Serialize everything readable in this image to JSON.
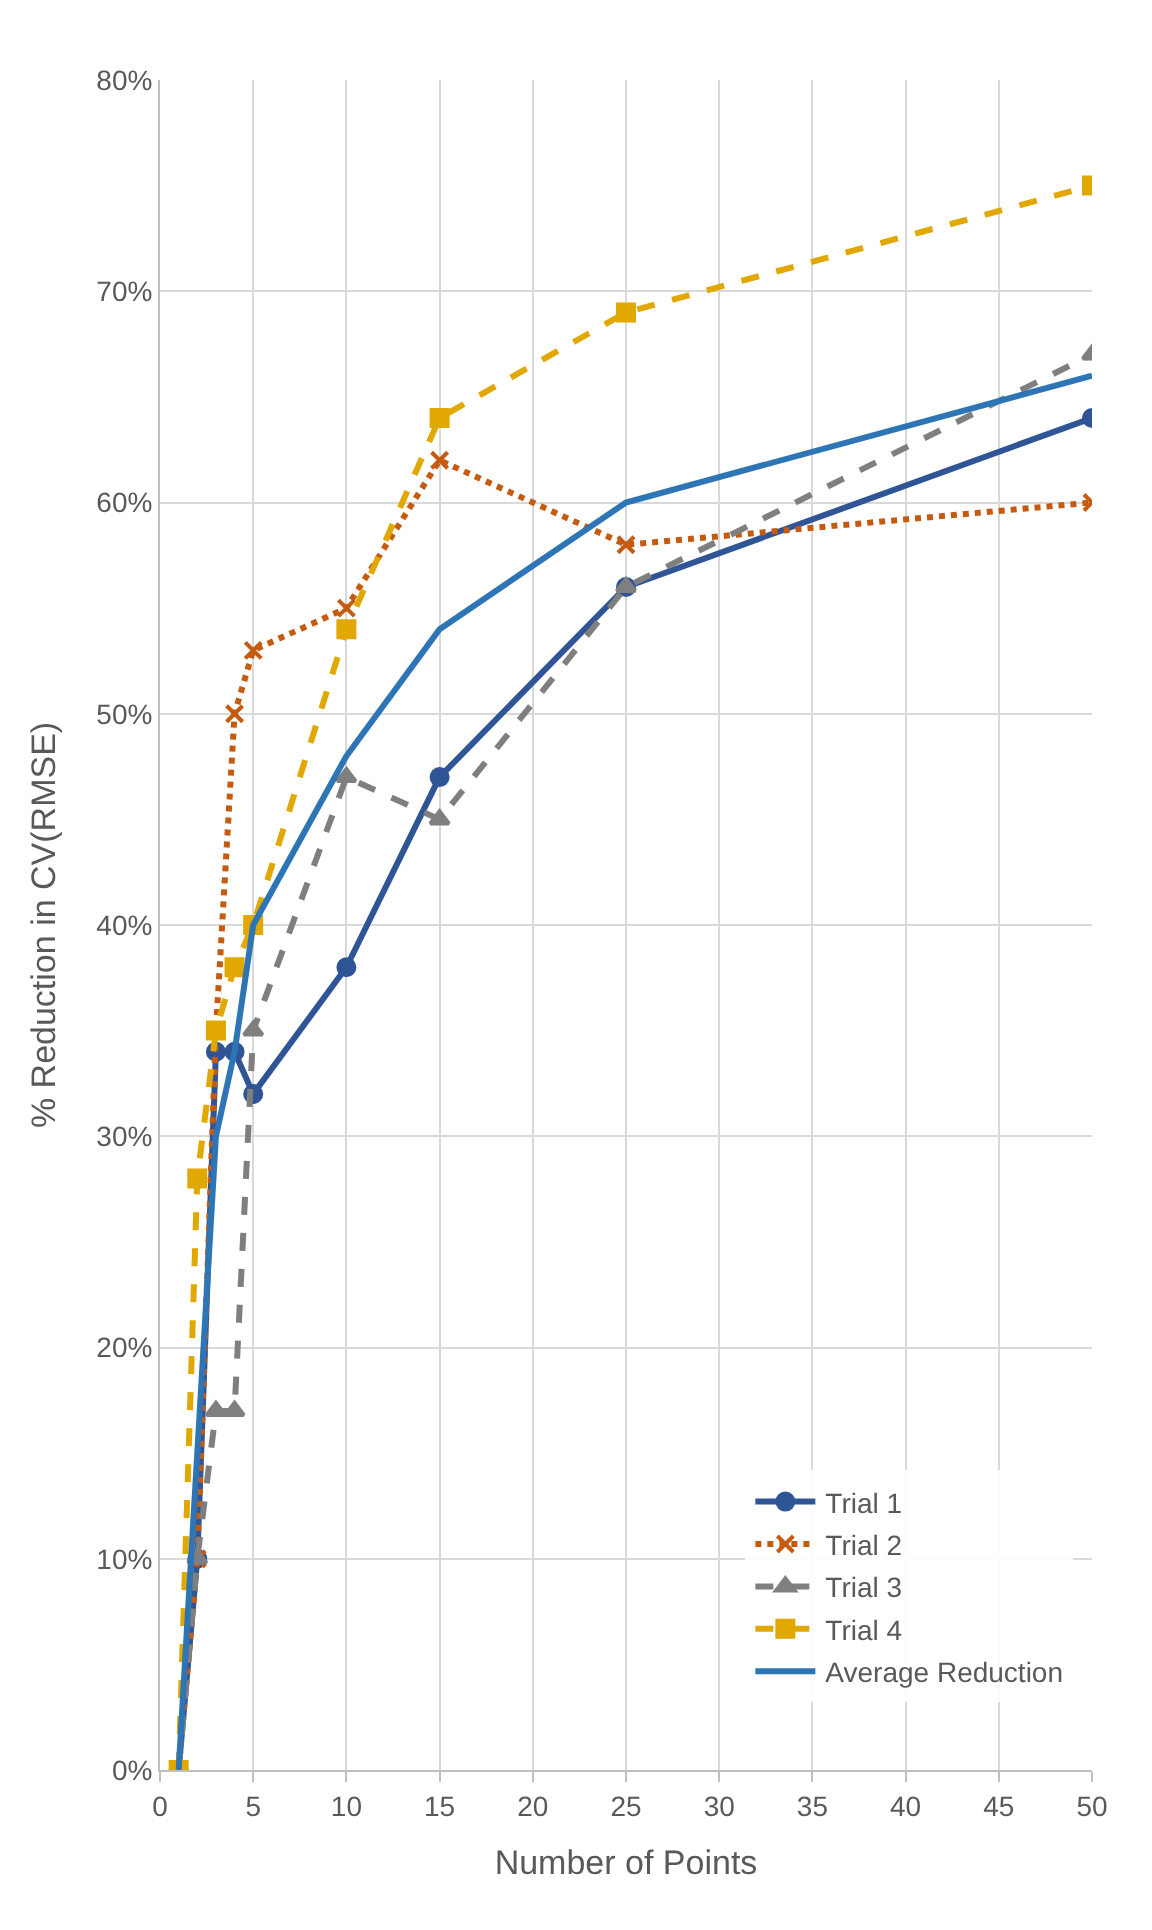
{
  "chart_data": {
    "type": "line",
    "xlabel": "Number of Points",
    "ylabel": "% Reduction in CV(RMSE)",
    "x": [
      1,
      2,
      3,
      4,
      5,
      10,
      15,
      25,
      50
    ],
    "series": [
      {
        "name": "Trial 1",
        "color": "#2f5597",
        "marker": "circle",
        "line_style": "solid",
        "values": [
          0,
          10,
          34,
          34,
          32,
          38,
          47,
          56,
          64
        ]
      },
      {
        "name": "Trial 2",
        "color": "#c55a11",
        "marker": "cross",
        "line_style": "dotted",
        "values": [
          0,
          10,
          35,
          50,
          53,
          55,
          62,
          58,
          60
        ]
      },
      {
        "name": "Trial 3",
        "color": "#7f7f7f",
        "marker": "triangle",
        "line_style": "dashed",
        "values": [
          0,
          10,
          17,
          17,
          35,
          47,
          45,
          56,
          67
        ]
      },
      {
        "name": "Trial 4",
        "color": "#e0a800",
        "marker": "square",
        "line_style": "dashed",
        "values": [
          0,
          28,
          35,
          38,
          40,
          54,
          64,
          69,
          75
        ]
      },
      {
        "name": "Average Reduction",
        "color": "#2e75b6",
        "marker": "none",
        "line_style": "solid",
        "values": [
          0,
          15,
          30,
          34,
          40,
          48,
          54,
          60,
          66
        ]
      }
    ],
    "xlim": [
      0,
      50
    ],
    "xticks": [
      0,
      5,
      10,
      15,
      20,
      25,
      30,
      35,
      40,
      45,
      50
    ],
    "ylim": [
      0,
      80
    ],
    "yticks": [
      {
        "value": 0,
        "label": "0%"
      },
      {
        "value": 10,
        "label": "10%"
      },
      {
        "value": 20,
        "label": "20%"
      },
      {
        "value": 30,
        "label": "30%"
      },
      {
        "value": 40,
        "label": "40%"
      },
      {
        "value": 50,
        "label": "50%"
      },
      {
        "value": 60,
        "label": "60%"
      },
      {
        "value": 70,
        "label": "70%"
      },
      {
        "value": 80,
        "label": "80%"
      }
    ],
    "grid": true,
    "legend": "bottom right"
  }
}
